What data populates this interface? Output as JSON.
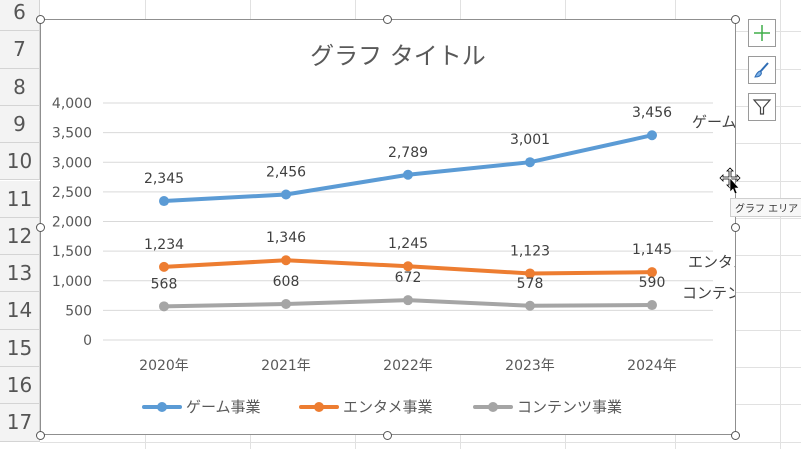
{
  "sheet": {
    "row_numbers": [
      "6",
      "7",
      "8",
      "9",
      "10",
      "11",
      "12",
      "13",
      "14",
      "15",
      "16",
      "17"
    ]
  },
  "chart_data": {
    "type": "line",
    "title": "グラフ タイトル",
    "categories": [
      "2020年",
      "2021年",
      "2022年",
      "2023年",
      "2024年"
    ],
    "ylim": [
      0,
      4000
    ],
    "yticks": [
      "0",
      "500",
      "1,000",
      "1,500",
      "2,000",
      "2,500",
      "3,000",
      "3,500",
      "4,000"
    ],
    "grid": true,
    "legend_position": "bottom",
    "series": [
      {
        "name": "ゲーム事業",
        "values": [
          2345,
          2456,
          2789,
          3001,
          3456
        ],
        "labels": [
          "2,345",
          "2,456",
          "2,789",
          "3,001",
          "3,456"
        ],
        "color": "#5b9bd5"
      },
      {
        "name": "エンタメ事業",
        "values": [
          1234,
          1346,
          1245,
          1123,
          1145
        ],
        "labels": [
          "1,234",
          "1,346",
          "1,245",
          "1,123",
          "1,145"
        ],
        "color": "#ed7d31"
      },
      {
        "name": "コンテンツ事業",
        "values": [
          568,
          608,
          672,
          578,
          590
        ],
        "labels": [
          "568",
          "608",
          "672",
          "578",
          "590"
        ],
        "color": "#a5a5a5"
      }
    ]
  },
  "side_buttons": [
    {
      "icon": "plus-icon"
    },
    {
      "icon": "brush-icon"
    },
    {
      "icon": "filter-icon"
    }
  ],
  "tooltip": "グラフ エリア"
}
